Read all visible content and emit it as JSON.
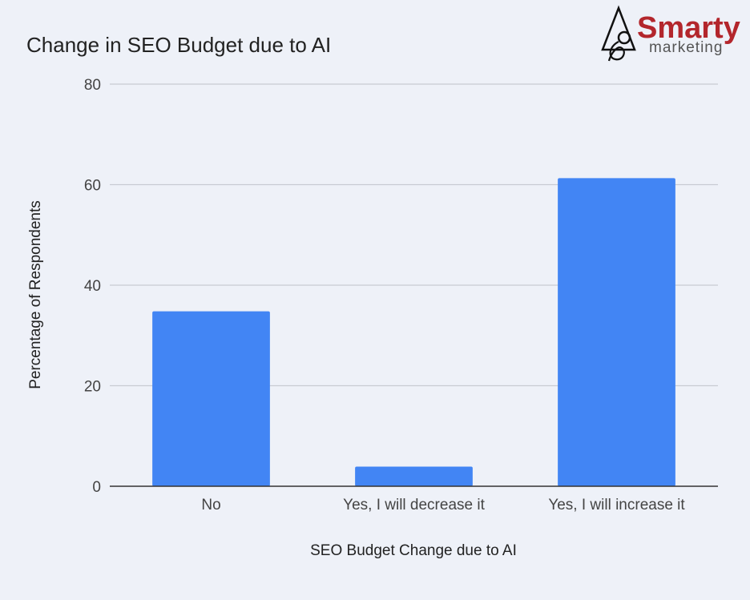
{
  "logo": {
    "name": "Smarty",
    "tagline": "marketing"
  },
  "colors": {
    "background": "#eef1f8",
    "bar": "#4285f4",
    "grid": "#c8cbd2",
    "axis": "#333333",
    "logo_red": "#b3262c"
  },
  "chart_data": {
    "type": "bar",
    "title": "Change in SEO Budget due to AI",
    "xlabel": "SEO Budget Change due to AI",
    "ylabel": "Percentage of Respondents",
    "categories": [
      "No",
      "Yes, I will decrease it",
      "Yes, I will increase it"
    ],
    "values": [
      34.8,
      3.9,
      61.3
    ],
    "ylim": [
      0,
      80
    ],
    "yticks": [
      0,
      20,
      40,
      60,
      80
    ],
    "grid": true,
    "legend": "none"
  }
}
